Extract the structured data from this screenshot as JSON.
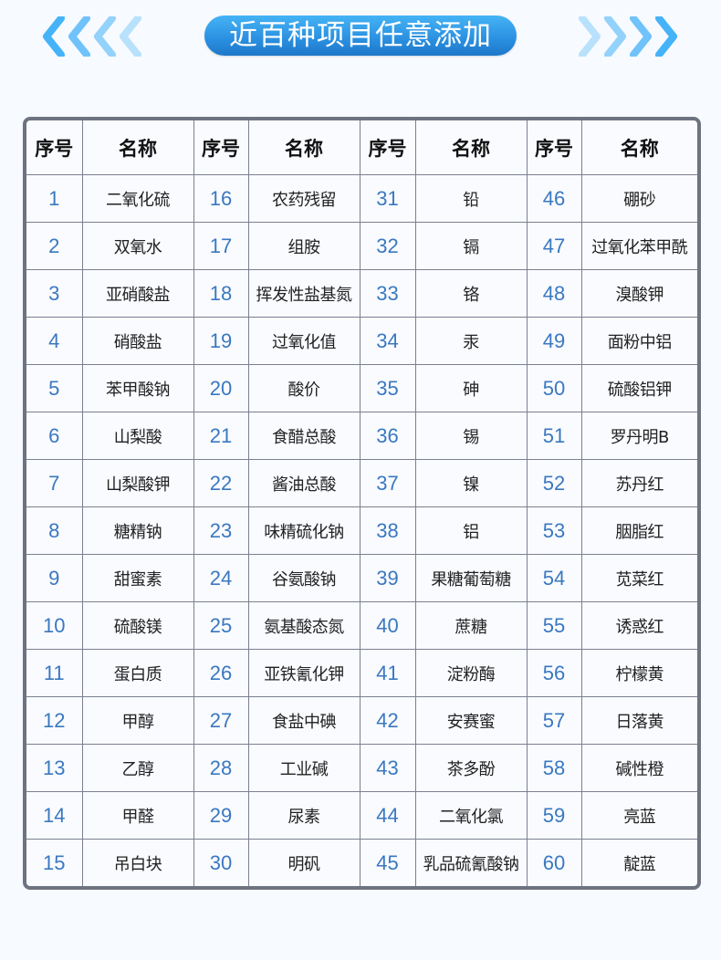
{
  "banner": {
    "title": "近百种项目任意添加",
    "left_icon": "chevrons-left-icon",
    "right_icon": "chevrons-right-icon",
    "color": "#2a8fe0"
  },
  "table": {
    "headers": {
      "no": "序号",
      "name": "名称"
    },
    "columns": [
      [
        [
          "1",
          "二氧化硫"
        ],
        [
          "2",
          "双氧水"
        ],
        [
          "3",
          "亚硝酸盐"
        ],
        [
          "4",
          "硝酸盐"
        ],
        [
          "5",
          "苯甲酸钠"
        ],
        [
          "6",
          "山梨酸"
        ],
        [
          "7",
          "山梨酸钾"
        ],
        [
          "8",
          "糖精钠"
        ],
        [
          "9",
          "甜蜜素"
        ],
        [
          "10",
          "硫酸镁"
        ],
        [
          "11",
          "蛋白质"
        ],
        [
          "12",
          "甲醇"
        ],
        [
          "13",
          "乙醇"
        ],
        [
          "14",
          "甲醛"
        ],
        [
          "15",
          "吊白块"
        ]
      ],
      [
        [
          "16",
          "农药残留"
        ],
        [
          "17",
          "组胺"
        ],
        [
          "18",
          "挥发性盐基氮"
        ],
        [
          "19",
          "过氧化值"
        ],
        [
          "20",
          "酸价"
        ],
        [
          "21",
          "食醋总酸"
        ],
        [
          "22",
          "酱油总酸"
        ],
        [
          "23",
          "味精硫化钠"
        ],
        [
          "24",
          "谷氨酸钠"
        ],
        [
          "25",
          "氨基酸态氮"
        ],
        [
          "26",
          "亚铁氰化钾"
        ],
        [
          "27",
          "食盐中碘"
        ],
        [
          "28",
          "工业碱"
        ],
        [
          "29",
          "尿素"
        ],
        [
          "30",
          "明矾"
        ]
      ],
      [
        [
          "31",
          "铅"
        ],
        [
          "32",
          "镉"
        ],
        [
          "33",
          "铬"
        ],
        [
          "34",
          "汞"
        ],
        [
          "35",
          "砷"
        ],
        [
          "36",
          "锡"
        ],
        [
          "37",
          "镍"
        ],
        [
          "38",
          "铝"
        ],
        [
          "39",
          "果糖葡萄糖"
        ],
        [
          "40",
          "蔗糖"
        ],
        [
          "41",
          "淀粉酶"
        ],
        [
          "42",
          "安赛蜜"
        ],
        [
          "43",
          "茶多酚"
        ],
        [
          "44",
          "二氧化氯"
        ],
        [
          "45",
          "乳品硫氰酸钠"
        ]
      ],
      [
        [
          "46",
          "硼砂"
        ],
        [
          "47",
          "过氧化苯甲酰"
        ],
        [
          "48",
          "溴酸钾"
        ],
        [
          "49",
          "面粉中铝"
        ],
        [
          "50",
          "硫酸铝钾"
        ],
        [
          "51",
          "罗丹明B"
        ],
        [
          "52",
          "苏丹红"
        ],
        [
          "53",
          "胭脂红"
        ],
        [
          "54",
          "苋菜红"
        ],
        [
          "55",
          "诱惑红"
        ],
        [
          "56",
          "柠檬黄"
        ],
        [
          "57",
          "日落黄"
        ],
        [
          "58",
          "碱性橙"
        ],
        [
          "59",
          "亮蓝"
        ],
        [
          "60",
          "靛蓝"
        ]
      ]
    ]
  }
}
